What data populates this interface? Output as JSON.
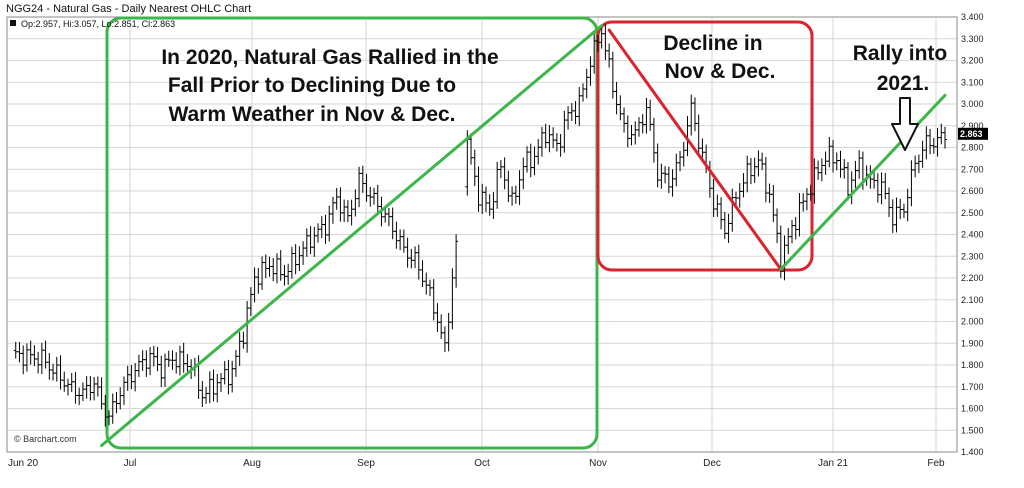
{
  "header": {
    "title": "NGG24 - Natural Gas - Daily Nearest OHLC Chart",
    "ohlc_readout": "Op:2.957, Hi:3.057, Lo:2.851, Cl:2.863"
  },
  "credit": "© Barchart.com",
  "colors": {
    "green": "#3cb54a",
    "red": "#d9232e",
    "bars": "#000000",
    "grid": "#d6d6d6",
    "last_label_bg": "#000000"
  },
  "annotations": {
    "green_box": [
      "In 2020, Natural Gas Rallied in the",
      "Fall Prior to Declining Due to",
      "Warm Weather in Nov & Dec."
    ],
    "red_box": [
      "Decline in",
      "Nov & Dec."
    ],
    "rally": [
      "Rally into",
      "2021."
    ],
    "arrow_icon": "down-arrow-icon"
  },
  "chart_data": {
    "type": "ohlc",
    "title": "NGG24 - Natural Gas - Daily Nearest OHLC Chart",
    "ylim": [
      1.4,
      3.4
    ],
    "yticks": [
      "1.400",
      "1.500",
      "1.600",
      "1.700",
      "1.800",
      "1.900",
      "2.000",
      "2.100",
      "2.200",
      "2.300",
      "2.400",
      "2.500",
      "2.600",
      "2.700",
      "2.800",
      "2.900",
      "3.000",
      "3.100",
      "3.200",
      "3.300",
      "3.400"
    ],
    "xticks": [
      "Jun 20",
      "Jul",
      "Aug",
      "Sep",
      "Oct",
      "Nov",
      "Dec",
      "Jan 21",
      "Feb"
    ],
    "last_price": "2.863",
    "grid": true,
    "series": [
      {
        "anchors": [
          [
            0,
            1.85
          ],
          [
            8,
            1.83
          ],
          [
            12,
            1.76
          ],
          [
            16,
            1.69
          ],
          [
            19,
            1.67
          ],
          [
            22,
            1.72
          ],
          [
            24,
            1.62
          ],
          [
            26,
            1.56
          ],
          [
            29,
            1.68
          ],
          [
            33,
            1.78
          ],
          [
            37,
            1.84
          ],
          [
            40,
            1.78
          ],
          [
            43,
            1.83
          ],
          [
            48,
            1.8
          ],
          [
            51,
            1.66
          ],
          [
            55,
            1.72
          ],
          [
            59,
            1.77
          ],
          [
            62,
            1.95
          ],
          [
            65,
            2.2
          ],
          [
            69,
            2.26
          ],
          [
            73,
            2.22
          ],
          [
            76,
            2.29
          ],
          [
            80,
            2.38
          ],
          [
            84,
            2.44
          ],
          [
            87,
            2.57
          ],
          [
            90,
            2.47
          ],
          [
            93,
            2.65
          ],
          [
            96,
            2.58
          ],
          [
            99,
            2.51
          ],
          [
            102,
            2.43
          ],
          [
            105,
            2.33
          ],
          [
            108,
            2.28
          ],
          [
            111,
            2.17
          ],
          [
            114,
            2.01
          ],
          [
            116,
            1.87
          ],
          [
            118,
            2.2
          ],
          [
            122,
            2.82
          ],
          [
            125,
            2.58
          ],
          [
            128,
            2.52
          ],
          [
            131,
            2.72
          ],
          [
            134,
            2.54
          ],
          [
            137,
            2.72
          ],
          [
            140,
            2.76
          ],
          [
            143,
            2.87
          ],
          [
            146,
            2.8
          ],
          [
            149,
            2.95
          ],
          [
            152,
            3.0
          ],
          [
            155,
            3.2
          ],
          [
            158,
            3.34
          ],
          [
            161,
            3.08
          ],
          [
            164,
            2.88
          ],
          [
            167,
            2.86
          ],
          [
            170,
            2.98
          ],
          [
            173,
            2.68
          ],
          [
            176,
            2.64
          ],
          [
            179,
            2.74
          ],
          [
            182,
            2.98
          ],
          [
            185,
            2.76
          ],
          [
            188,
            2.55
          ],
          [
            191,
            2.42
          ],
          [
            194,
            2.58
          ],
          [
            197,
            2.68
          ],
          [
            200,
            2.74
          ],
          [
            203,
            2.58
          ],
          [
            206,
            2.28
          ],
          [
            209,
            2.43
          ],
          [
            212,
            2.55
          ],
          [
            215,
            2.66
          ],
          [
            218,
            2.76
          ],
          [
            221,
            2.75
          ],
          [
            224,
            2.62
          ],
          [
            227,
            2.72
          ],
          [
            230,
            2.64
          ],
          [
            233,
            2.62
          ],
          [
            236,
            2.48
          ],
          [
            239,
            2.52
          ],
          [
            242,
            2.73
          ],
          [
            245,
            2.82
          ],
          [
            248,
            2.83
          ],
          [
            250,
            2.86
          ]
        ]
      }
    ],
    "annotation_lines": [
      {
        "color": "green",
        "from": [
          24,
          1.43
        ],
        "to": [
          158,
          3.36
        ]
      },
      {
        "color": "red",
        "from": [
          160,
          3.34
        ],
        "to": [
          206,
          2.24
        ]
      },
      {
        "color": "green",
        "from": [
          206,
          2.24
        ],
        "to": [
          250,
          3.04
        ]
      }
    ]
  }
}
